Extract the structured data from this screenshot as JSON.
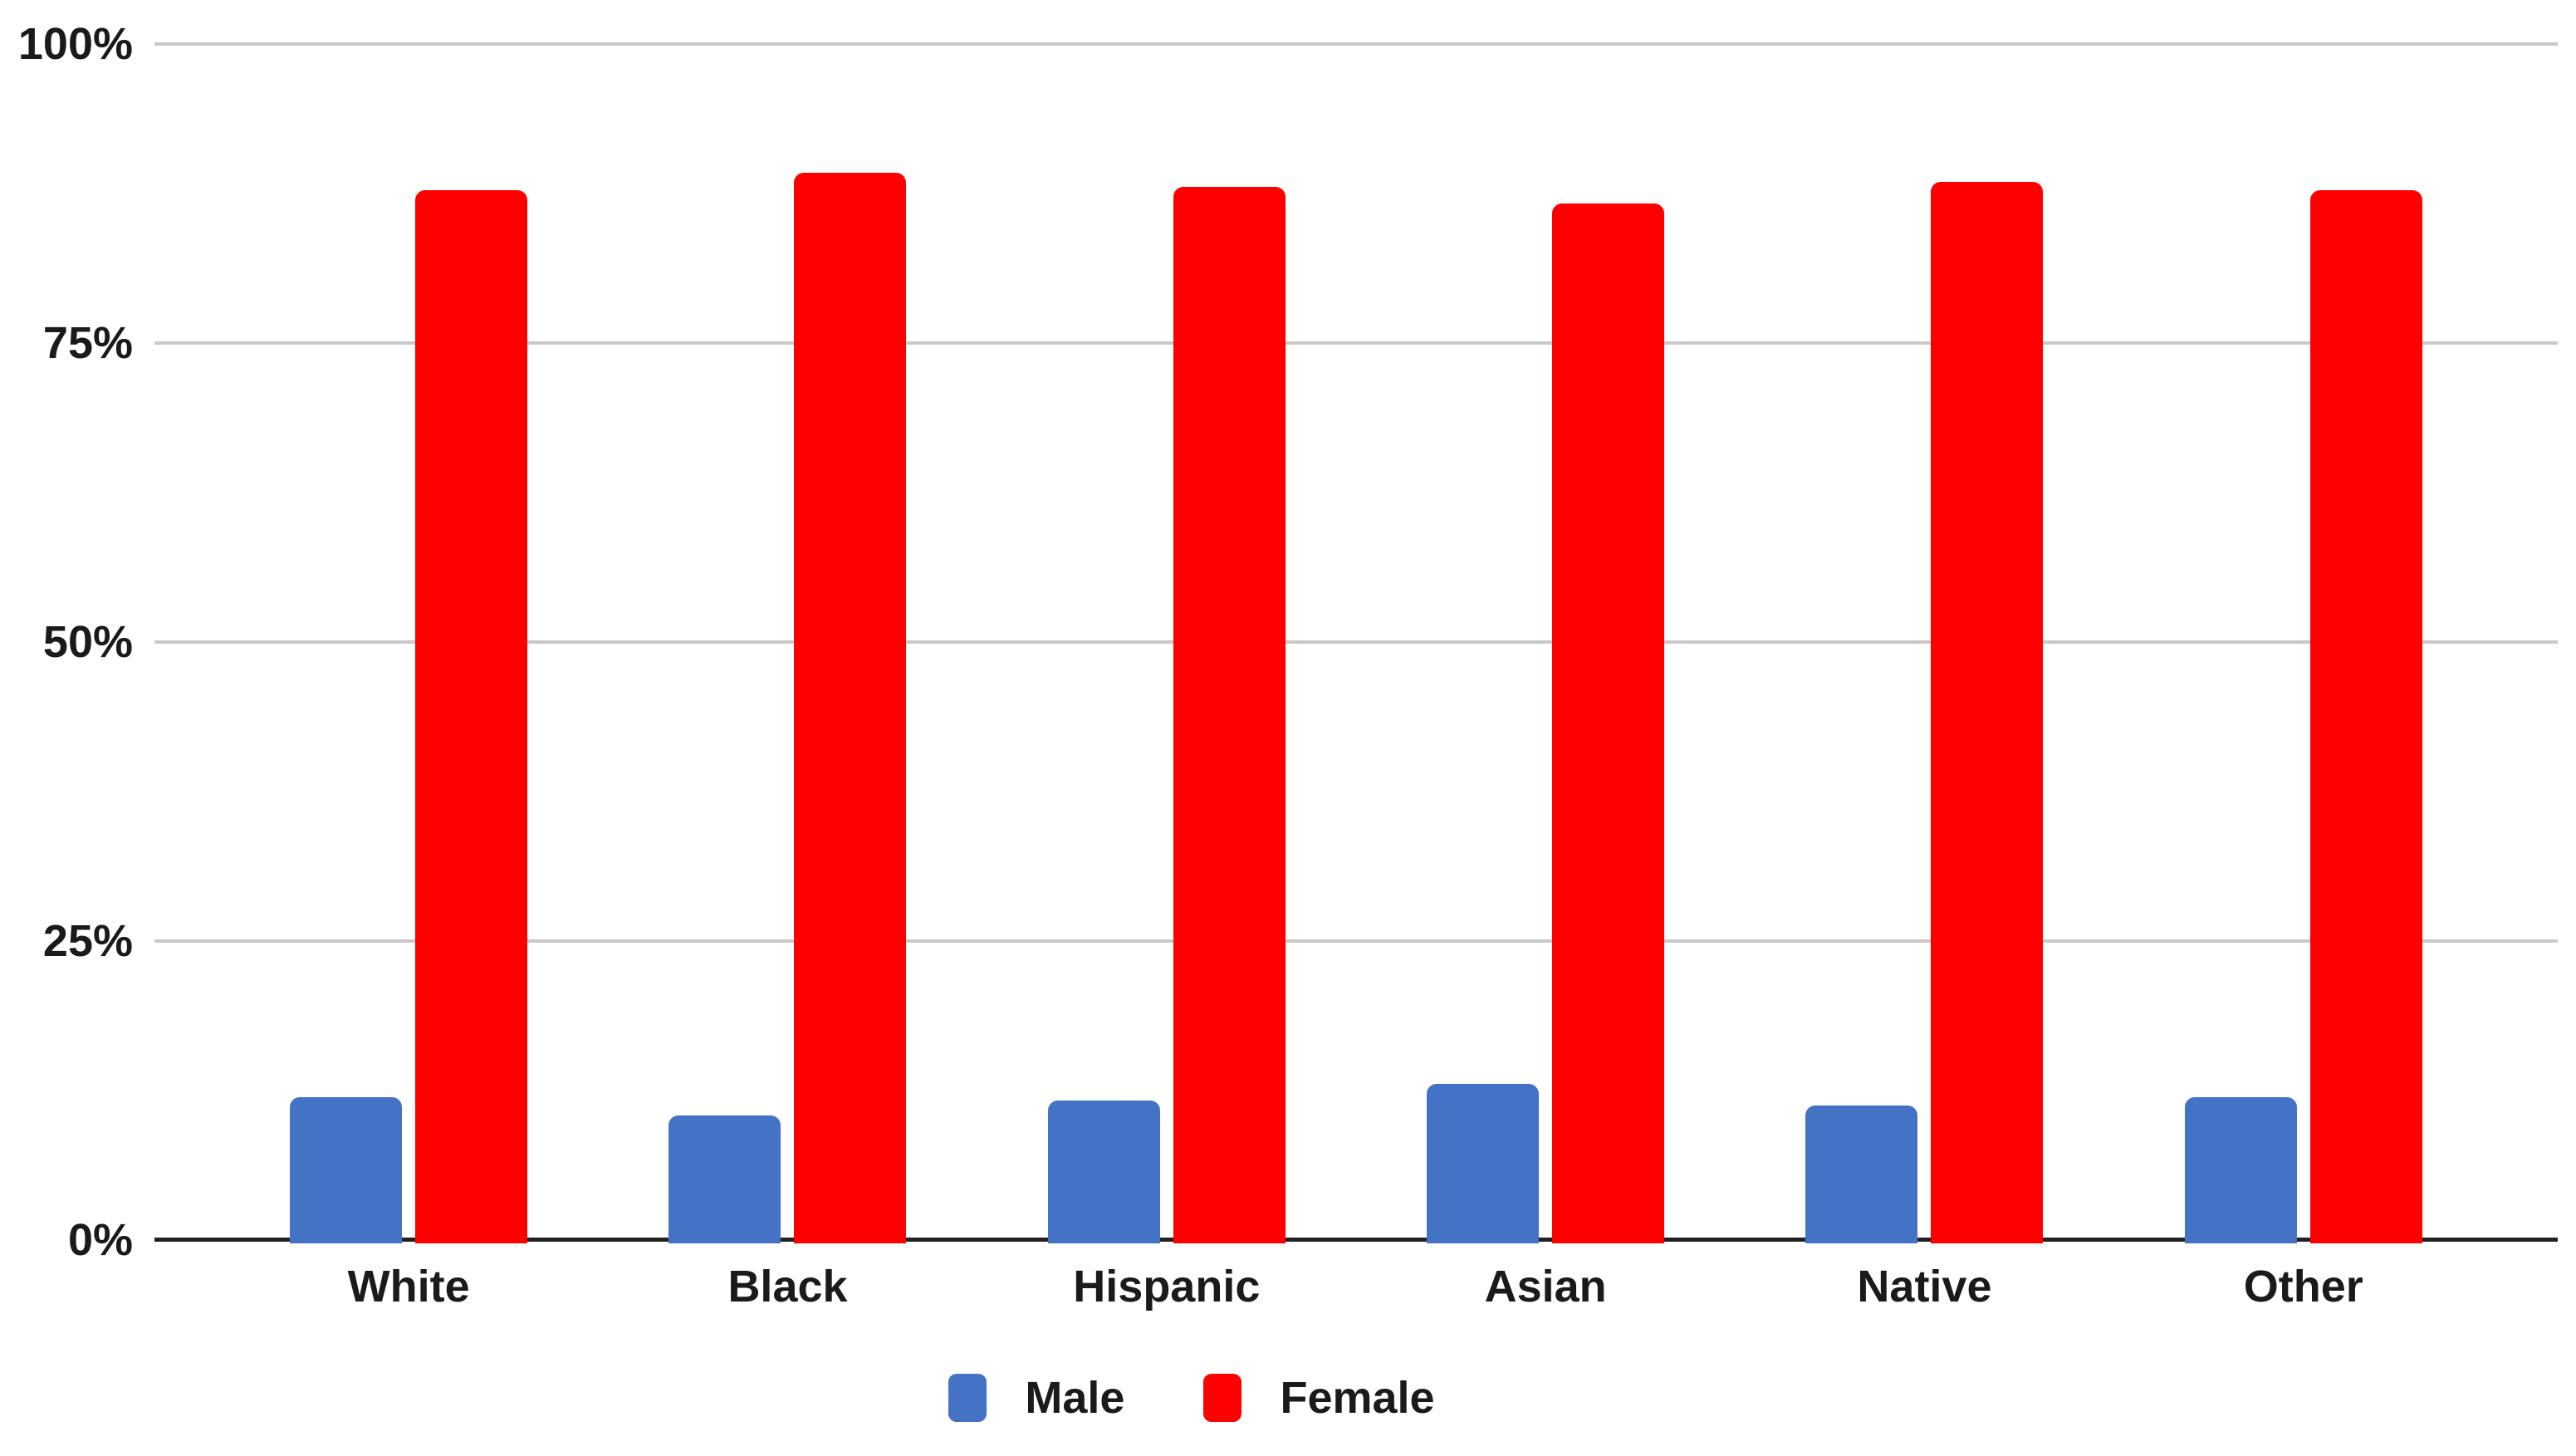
{
  "chart_data": {
    "type": "bar",
    "title": "",
    "categories": [
      "White",
      "Black",
      "Hispanic",
      "Asian",
      "Native",
      "Other"
    ],
    "series": [
      {
        "name": "Male",
        "color": "#4472C4",
        "values": [
          12.2,
          10.7,
          11.9,
          13.3,
          11.5,
          12.2
        ]
      },
      {
        "name": "Female",
        "color": "#FF0000",
        "values": [
          87.8,
          89.3,
          88.1,
          86.7,
          88.5,
          87.8
        ]
      }
    ],
    "y_axis": {
      "range": [
        0,
        100
      ],
      "ticks": [
        {
          "label": "100%",
          "value": 100
        },
        {
          "label": "75%",
          "value": 75
        },
        {
          "label": "50%",
          "value": 50
        },
        {
          "label": "25%",
          "value": 25
        },
        {
          "label": "0%",
          "value": 0
        }
      ],
      "gridline_values": [
        25,
        50,
        75,
        100
      ],
      "gridline_color": "#C9C9C9",
      "axis_line_color": "#222222"
    },
    "xlabel": "",
    "ylabel": "",
    "grid": "horizontal-only",
    "legend": {
      "position": "bottom",
      "items": [
        "Male",
        "Female"
      ]
    },
    "background_color": "#FFFFFF",
    "text_color": "#1A1A1A"
  }
}
